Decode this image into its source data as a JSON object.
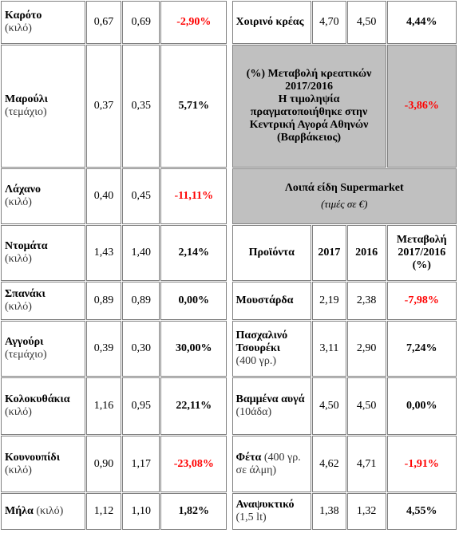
{
  "left_table": {
    "rows": [
      {
        "name": "Καρότο",
        "unit": "(κιλό)",
        "price_2017": "0,67",
        "price_2016": "0,69",
        "change": "-2,90%",
        "change_color": "#ff0000"
      },
      {
        "name": "Μαρούλι",
        "unit": "(τεμάχιο)",
        "price_2017": "0,37",
        "price_2016": "0,35",
        "change": "5,71%",
        "change_color": "#000000"
      },
      {
        "name": "Λάχανο",
        "unit": "(κιλό)",
        "price_2017": "0,40",
        "price_2016": "0,45",
        "change": "-11,11%",
        "change_color": "#ff0000"
      },
      {
        "name": "Ντομάτα",
        "unit": "(κιλό)",
        "price_2017": "1,43",
        "price_2016": "1,40",
        "change": "2,14%",
        "change_color": "#000000"
      },
      {
        "name": "Σπανάκι",
        "unit": "(κιλό)",
        "price_2017": "0,89",
        "price_2016": "0,89",
        "change": "0,00%",
        "change_color": "#000000"
      },
      {
        "name": "Αγγούρι",
        "unit": "(τεμάχιο)",
        "price_2017": "0,39",
        "price_2016": "0,30",
        "change": "30,00%",
        "change_color": "#000000"
      },
      {
        "name": "Κολοκυθάκια",
        "unit": "(κιλό)",
        "price_2017": "1,16",
        "price_2016": "0,95",
        "change": "22,11%",
        "change_color": "#000000"
      },
      {
        "name": "Κουνουπίδι",
        "unit": "(κιλό)",
        "price_2017": "0,90",
        "price_2016": "1,17",
        "change": "-23,08%",
        "change_color": "#ff0000"
      },
      {
        "name": "Μήλα",
        "unit": "(κιλό)",
        "price_2017": "1,12",
        "price_2016": "1,10",
        "change": "1,82%",
        "change_color": "#000000"
      }
    ]
  },
  "right_table": {
    "top_row": {
      "name": "Χοιρινό κρέας",
      "price_2017": "4,70",
      "price_2016": "4,50",
      "change": "4,44%",
      "change_color": "#000000"
    },
    "meat_note": {
      "lines": [
        "(%) Μεταβολή κρεατικών",
        "2017/2016",
        "Η τιμοληψία",
        "πραγματοποιήθηκε στην",
        "Κεντρική Αγορά Αθηνών",
        "(Βαρβάκειος)"
      ],
      "change": "-3,86%",
      "change_color": "#ff0000"
    },
    "section": {
      "title": "Λοιπά είδη Supermarket",
      "subtitle": "(τιμές σε €)"
    },
    "headers": [
      "Προϊόντα",
      "2017",
      "2016",
      "Μεταβολή 2017/2016 (%)"
    ],
    "rows": [
      {
        "name": "Μουστάρδα",
        "price_2017": "2,19",
        "price_2016": "2,38",
        "change": "-7,98%",
        "change_color": "#ff0000"
      },
      {
        "name": "Πασχαλινό Τσουρέκι",
        "unit": "(400 γρ.)",
        "price_2017": "3,11",
        "price_2016": "2,90",
        "change": "7,24%",
        "change_color": "#000000"
      },
      {
        "name": "Βαμμένα αυγά",
        "unit": "(10άδα)",
        "price_2017": "4,50",
        "price_2016": "4,50",
        "change": "0,00%",
        "change_color": "#000000"
      },
      {
        "name": "Φέτα",
        "unit": "(400 γρ. σε άλμη)",
        "price_2017": "4,62",
        "price_2016": "4,71",
        "change": "-1,91%",
        "change_color": "#ff0000"
      },
      {
        "name": "Αναψυκτικό",
        "unit": "(1,5 lt)",
        "price_2017": "1,38",
        "price_2016": "1,32",
        "change": "4,55%",
        "change_color": "#000000"
      }
    ]
  }
}
